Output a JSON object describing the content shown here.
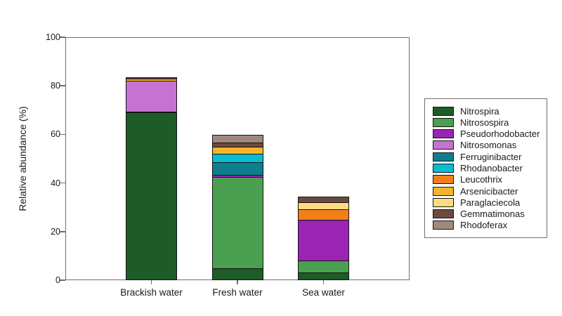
{
  "chart_data": {
    "type": "bar",
    "stacked": true,
    "title": "",
    "xlabel": "",
    "ylabel": "Relative abundance (%)",
    "ylim": [
      0,
      100
    ],
    "yticks": [
      0,
      20,
      40,
      60,
      80,
      100
    ],
    "grid": false,
    "legend_position": "right-outside",
    "categories": [
      "Brackish water",
      "Fresh water",
      "Sea water"
    ],
    "series": [
      {
        "name": "Nitrospira",
        "color": "#1e5b27",
        "values": [
          69.1,
          4.8,
          3.1
        ]
      },
      {
        "name": "Nitrosospira",
        "color": "#4ba050",
        "values": [
          0,
          38.0,
          5.3
        ]
      },
      {
        "name": "Pseudorhodobacter",
        "color": "#9b24b2",
        "values": [
          0.7,
          1.2,
          17.1
        ]
      },
      {
        "name": "Nitrosomonas",
        "color": "#c473d3",
        "values": [
          13.0,
          0,
          0
        ]
      },
      {
        "name": "Ferruginibacter",
        "color": "#0e7f8e",
        "values": [
          0,
          5.3,
          0
        ]
      },
      {
        "name": "Rhodanobacter",
        "color": "#06bdd4",
        "values": [
          0,
          3.8,
          0
        ]
      },
      {
        "name": "Leucothrix",
        "color": "#f28019",
        "values": [
          0,
          0,
          4.6
        ]
      },
      {
        "name": "Arsenicibacter",
        "color": "#f5b52a",
        "values": [
          1.0,
          3.2,
          0
        ]
      },
      {
        "name": "Paraglaciecola",
        "color": "#fbdc81",
        "values": [
          0,
          0,
          3.0
        ]
      },
      {
        "name": "Gemmatimonas",
        "color": "#6d4a3e",
        "values": [
          0.9,
          2.2,
          2.7
        ]
      },
      {
        "name": "Rhodoferax",
        "color": "#a2887c",
        "values": [
          0,
          3.3,
          0
        ]
      }
    ],
    "bar_totals": [
      84.7,
      61.8,
      35.8
    ]
  },
  "layout_text": {
    "y_axis_title": "Relative abundance (%)"
  }
}
